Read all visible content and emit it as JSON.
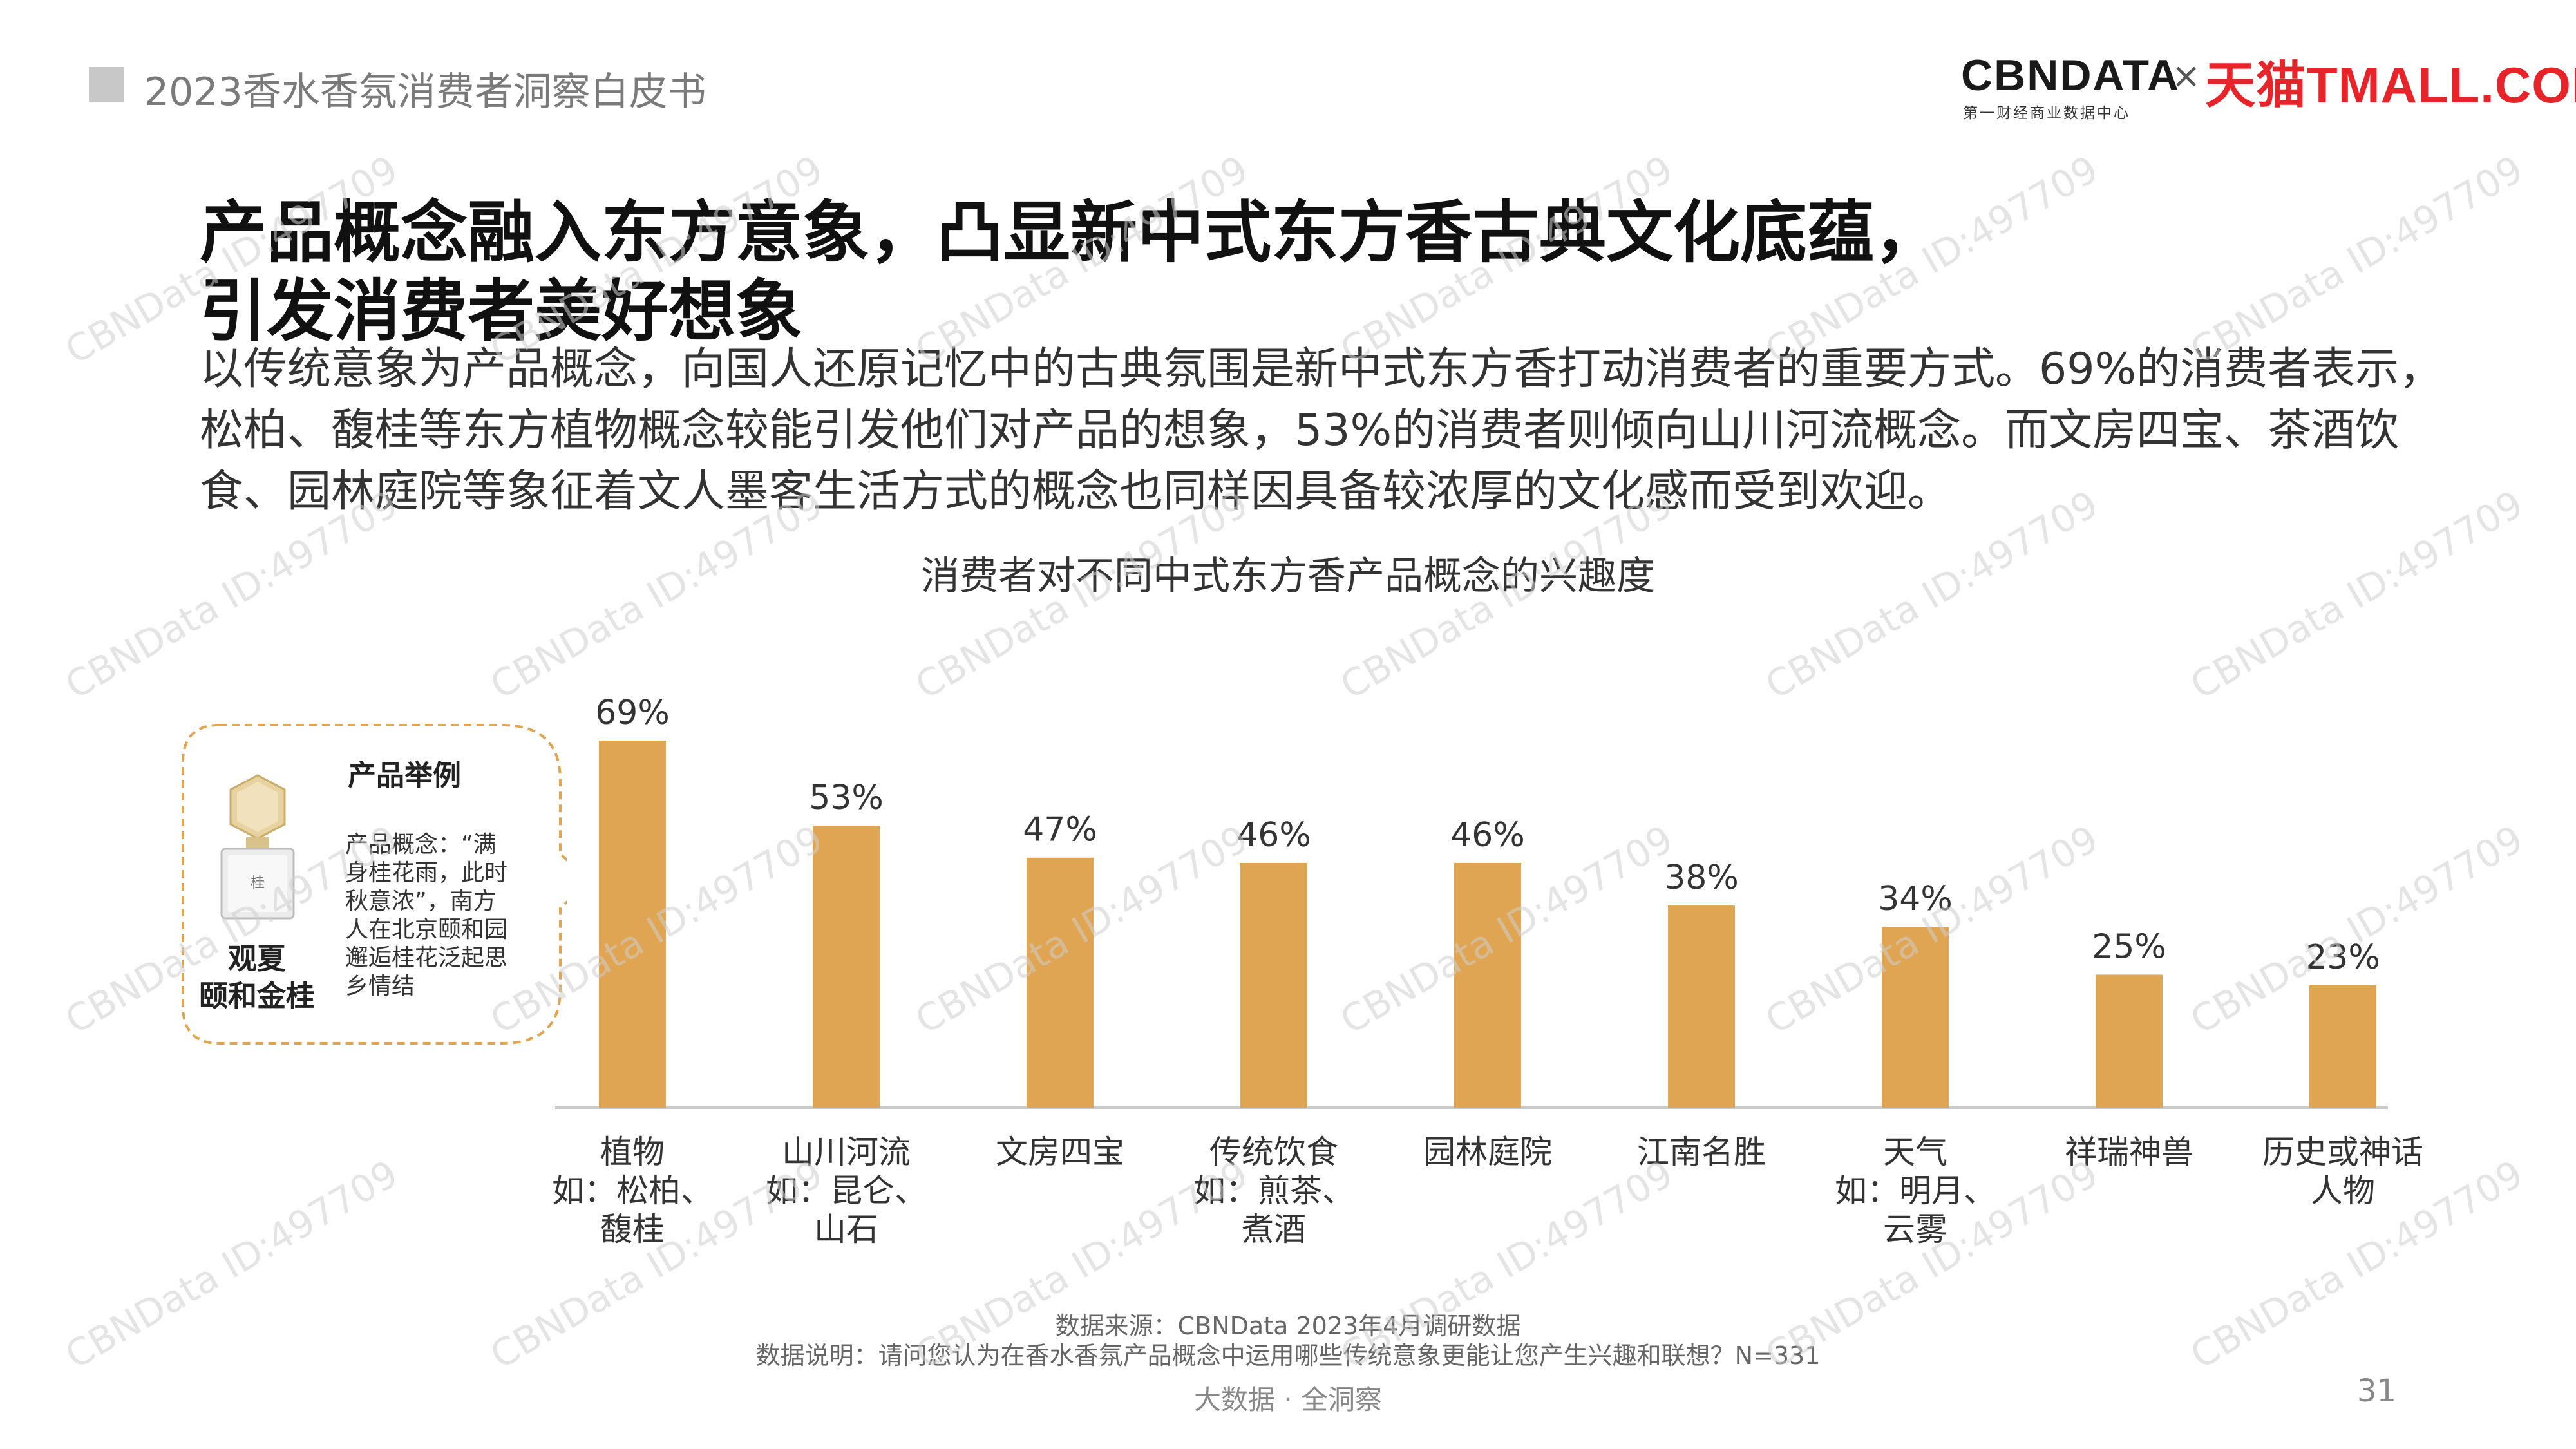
{
  "header": {
    "report_title": "2023香水香氛消费者洞察白皮书"
  },
  "logos": {
    "cbn_main": "CBNDATA",
    "cbn_sub": "第一财经商业数据中心",
    "separator": "×",
    "tmall": "天猫TMALL.COM"
  },
  "title_lines": [
    "产品概念融入东方意象，凸显新中式东方香古典文化底蕴，",
    "引发消费者美好想象"
  ],
  "description_lines": [
    "以传统意象为产品概念，向国人还原记忆中的古典氛围是新中式东方香打动消费者的重要方式。69%的消费者表示，",
    "松柏、馥桂等东方植物概念较能引发他们对产品的想象，53%的消费者则倾向山川河流概念。而文房四宝、茶酒饮",
    "食、园林庭院等象征着文人墨客生活方式的概念也同样因具备较浓厚的文化感而受到欢迎。"
  ],
  "callout": {
    "title": "产品举例",
    "product_name_lines": [
      "观夏",
      "颐和金桂"
    ],
    "description_lines": [
      "产品概念：“满",
      "身桂花雨，此时",
      "秋意浓”，南方",
      "人在北京颐和园",
      "邂逅桂花泛起思",
      "乡情结"
    ]
  },
  "chart_data": {
    "type": "bar",
    "title": "消费者对不同中式东方香产品概念的兴趣度",
    "categories": [
      [
        "植物",
        "如：松柏、",
        "馥桂"
      ],
      [
        "山川河流",
        "如：昆仑、",
        "山石"
      ],
      [
        "文房四宝"
      ],
      [
        "传统饮食",
        "如：煎茶、",
        "煮酒"
      ],
      [
        "园林庭院"
      ],
      [
        "江南名胜"
      ],
      [
        "天气",
        "如：明月、",
        "云雾"
      ],
      [
        "祥瑞神兽"
      ],
      [
        "历史或神话",
        "人物"
      ]
    ],
    "values": [
      69,
      53,
      47,
      46,
      46,
      38,
      34,
      25,
      23
    ],
    "value_labels": [
      "69%",
      "53%",
      "47%",
      "46%",
      "46%",
      "38%",
      "34%",
      "25%",
      "23%"
    ],
    "ylim": [
      0,
      69
    ],
    "grid": false,
    "bar_color": "#e0a552",
    "axis_color": "#cccccc"
  },
  "source": {
    "line1": "数据来源：CBNData 2023年4月调研数据",
    "line2": "数据说明：请问您认为在香水香氛产品概念中运用哪些传统意象更能让您产生兴趣和联想？N=331"
  },
  "footer": {
    "center": "大数据 · 全洞察",
    "page": "31"
  },
  "watermark": "CBNData ID:497709",
  "colors": {
    "callout_border": "#e0a552",
    "tmall_red": "#e8242b"
  }
}
